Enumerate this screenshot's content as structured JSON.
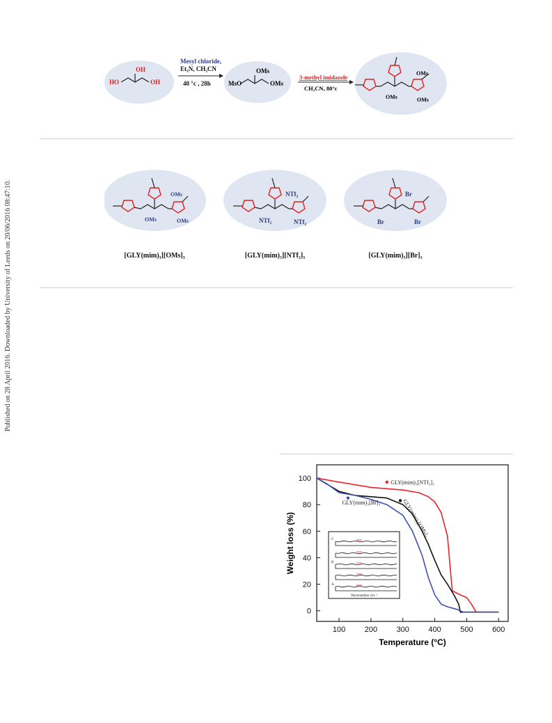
{
  "side_note": "Published on 28 April 2016. Downloaded by University of Leeds on 20/06/2016 08:47:10.",
  "scheme": {
    "reagents_line1": "Mesyl chloride,",
    "reagents_line2": "Et₃N,  CH₃CN",
    "conditions1": "40 °c , 28h",
    "reagent2": "3-methyl imidazole",
    "conditions2": "CH₃CN, 80°c",
    "groups": {
      "ho": "HO",
      "oh": "OH",
      "ho_top": "OH",
      "oms": "OMs",
      "mso": "MsO"
    }
  },
  "compounds": [
    {
      "caption": "[GLY(mim)₃][OMs]₃",
      "anion": "OMs"
    },
    {
      "caption": "[GLY(mim)₃][NTf₂]₃",
      "anion": "NTf₂"
    },
    {
      "caption": "[GLY(mim)₃][Br]₃",
      "anion": "Br"
    }
  ],
  "chart_data": {
    "type": "line",
    "xlabel": "Temperature (°C)",
    "ylabel": "Weight loss (%)",
    "xlim": [
      30,
      630
    ],
    "ylim": [
      -8,
      110
    ],
    "xticks": [
      100,
      200,
      300,
      400,
      500,
      600
    ],
    "yticks": [
      0,
      20,
      40,
      60,
      80,
      100
    ],
    "series": [
      {
        "name": "GLY(mim)₃[NTf₂]₃",
        "color": "#e8232b",
        "x": [
          30,
          100,
          200,
          250,
          300,
          350,
          380,
          400,
          420,
          440,
          450,
          455,
          480,
          500,
          515,
          530,
          600
        ],
        "y": [
          100,
          97,
          93,
          92,
          91,
          89,
          86,
          82,
          74,
          56,
          28,
          15,
          12,
          10,
          5,
          -1,
          -1
        ]
      },
      {
        "name": "GLY(mim)₃[OMs]₃",
        "color": "#111111",
        "x": [
          30,
          100,
          150,
          200,
          250,
          300,
          330,
          360,
          380,
          400,
          420,
          440,
          460,
          475,
          480,
          500,
          600
        ],
        "y": [
          100,
          90,
          87,
          86,
          85,
          80,
          73,
          60,
          50,
          38,
          27,
          20,
          12,
          5,
          -1,
          -1,
          -1
        ]
      },
      {
        "name": "GLY(mim)₃[Br]₃",
        "color": "#3b4fb0",
        "x": [
          30,
          60,
          100,
          150,
          200,
          250,
          300,
          330,
          360,
          380,
          400,
          420,
          440,
          470,
          490,
          600
        ],
        "y": [
          100,
          96,
          89,
          87,
          84,
          80,
          72,
          60,
          42,
          25,
          12,
          5,
          3,
          1,
          -1,
          -1
        ]
      }
    ],
    "inset": {
      "ylabels": [
        "C",
        "B",
        "A"
      ],
      "xlabel": "Wavenumber cm⁻¹"
    }
  }
}
